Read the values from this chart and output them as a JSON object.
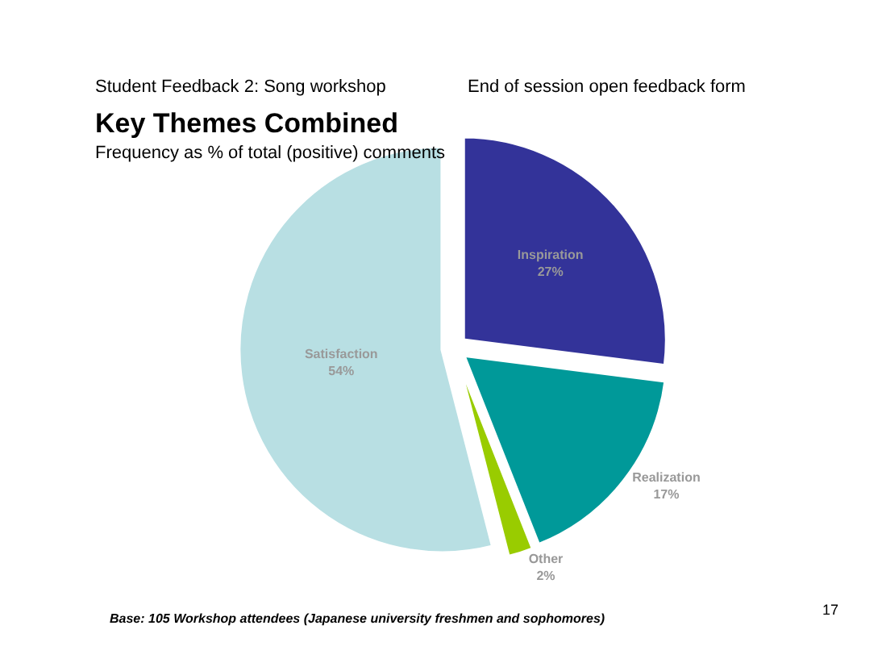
{
  "chart_data": {
    "type": "pie",
    "title": "Key Themes Combined",
    "subtitle": "Frequency as % of total (positive) comments",
    "categories": [
      "Inspiration",
      "Realization",
      "Other",
      "Satisfaction"
    ],
    "values": [
      27,
      17,
      2,
      54
    ],
    "value_labels": [
      "27%",
      "17%",
      "2%",
      "54%"
    ],
    "colors": [
      "#333399",
      "#009999",
      "#99cc00",
      "#b8dfe3"
    ],
    "legend": false,
    "annotations": [
      "Student Feedback 2: Song workshop",
      "End of session open feedback form",
      "Base: 105 Workshop attendees (Japanese university freshmen and sophomores)",
      "17"
    ]
  }
}
